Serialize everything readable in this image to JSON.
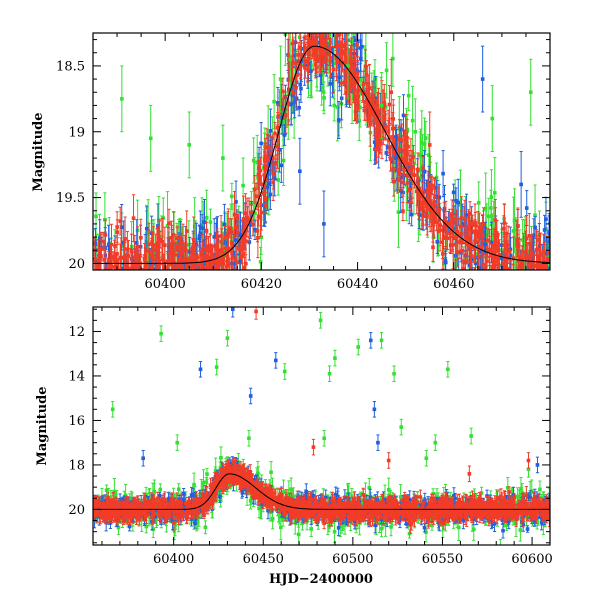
{
  "chart_data": [
    {
      "type": "scatter",
      "panel": "top",
      "ylabel": "Magnitude",
      "xlabel": "",
      "xlim": [
        60385,
        60480
      ],
      "ylim": [
        20.05,
        18.25
      ],
      "y_inverted": true,
      "xticks": [
        60400,
        60420,
        60440,
        60460
      ],
      "yticks": [
        18.5,
        19,
        19.5,
        20
      ],
      "ytick_labels": [
        "18.5",
        "19",
        "19.5",
        "20"
      ],
      "series": [
        {
          "name": "green",
          "color": "#33e033"
        },
        {
          "name": "blue",
          "color": "#1f5fe0"
        },
        {
          "name": "red",
          "color": "#f23c28"
        }
      ],
      "model_curve": {
        "color": "#000000",
        "peak_x": 60431,
        "peak_mag": 18.35,
        "baseline_mag": 20.0,
        "rise_days": 11,
        "decay_days": 22
      },
      "outliers": [
        {
          "x": 60391,
          "y": 18.75,
          "series": "green"
        },
        {
          "x": 60397,
          "y": 19.05,
          "series": "green"
        },
        {
          "x": 60405,
          "y": 19.1,
          "series": "green"
        },
        {
          "x": 60412,
          "y": 19.2,
          "series": "green"
        },
        {
          "x": 60424,
          "y": 18.6,
          "series": "green"
        },
        {
          "x": 60426,
          "y": 18.45,
          "series": "green"
        },
        {
          "x": 60438,
          "y": 18.5,
          "series": "green"
        },
        {
          "x": 60445,
          "y": 18.8,
          "series": "green"
        },
        {
          "x": 60452,
          "y": 19.0,
          "series": "green"
        },
        {
          "x": 60468,
          "y": 18.9,
          "series": "green"
        },
        {
          "x": 60476,
          "y": 18.7,
          "series": "green"
        },
        {
          "x": 60428,
          "y": 19.3,
          "series": "blue"
        },
        {
          "x": 60433,
          "y": 19.7,
          "series": "blue"
        },
        {
          "x": 60448,
          "y": 19.2,
          "series": "blue"
        },
        {
          "x": 60466,
          "y": 18.6,
          "series": "blue"
        },
        {
          "x": 60474,
          "y": 19.4,
          "series": "blue"
        },
        {
          "x": 60447,
          "y": 18.7,
          "series": "red"
        },
        {
          "x": 60455,
          "y": 19.1,
          "series": "red"
        }
      ]
    },
    {
      "type": "scatter",
      "panel": "bottom",
      "ylabel": "Magnitude",
      "xlabel": "HJD−2400000",
      "xlim": [
        60355,
        60610
      ],
      "ylim": [
        21.6,
        10.9
      ],
      "y_inverted": true,
      "xticks": [
        60400,
        60450,
        60500,
        60550,
        60600
      ],
      "yticks": [
        12,
        14,
        16,
        18,
        20
      ],
      "ytick_labels": [
        "12",
        "14",
        "16",
        "18",
        "20"
      ],
      "series": [
        {
          "name": "green",
          "color": "#33e033"
        },
        {
          "name": "blue",
          "color": "#1f5fe0"
        },
        {
          "name": "red",
          "color": "#f23c28"
        }
      ],
      "model_curve": {
        "color": "#000000",
        "peak_x": 60431,
        "peak_mag": 18.4,
        "baseline_mag": 20.0,
        "rise_days": 11,
        "decay_days": 22
      },
      "outliers": [
        {
          "x": 60366,
          "y": 15.5,
          "series": "green"
        },
        {
          "x": 60393,
          "y": 12.1,
          "series": "green"
        },
        {
          "x": 60402,
          "y": 17.0,
          "series": "green"
        },
        {
          "x": 60424,
          "y": 13.6,
          "series": "green"
        },
        {
          "x": 60430,
          "y": 12.3,
          "series": "green"
        },
        {
          "x": 60442,
          "y": 16.8,
          "series": "green"
        },
        {
          "x": 60462,
          "y": 13.8,
          "series": "green"
        },
        {
          "x": 60482,
          "y": 11.5,
          "series": "green"
        },
        {
          "x": 60484,
          "y": 16.8,
          "series": "green"
        },
        {
          "x": 60487,
          "y": 13.9,
          "series": "green"
        },
        {
          "x": 60490,
          "y": 13.2,
          "series": "green"
        },
        {
          "x": 60503,
          "y": 12.7,
          "series": "green"
        },
        {
          "x": 60516,
          "y": 12.4,
          "series": "green"
        },
        {
          "x": 60523,
          "y": 13.9,
          "series": "green"
        },
        {
          "x": 60527,
          "y": 16.3,
          "series": "green"
        },
        {
          "x": 60541,
          "y": 17.7,
          "series": "green"
        },
        {
          "x": 60546,
          "y": 17.0,
          "series": "green"
        },
        {
          "x": 60553,
          "y": 13.7,
          "series": "green"
        },
        {
          "x": 60566,
          "y": 16.7,
          "series": "green"
        },
        {
          "x": 60598,
          "y": 18.2,
          "series": "green"
        },
        {
          "x": 60415,
          "y": 13.7,
          "series": "blue"
        },
        {
          "x": 60433,
          "y": 11.0,
          "series": "blue"
        },
        {
          "x": 60443,
          "y": 14.9,
          "series": "blue"
        },
        {
          "x": 60457,
          "y": 13.3,
          "series": "blue"
        },
        {
          "x": 60474,
          "y": 19.2,
          "series": "blue"
        },
        {
          "x": 60510,
          "y": 12.4,
          "series": "blue"
        },
        {
          "x": 60512,
          "y": 15.5,
          "series": "blue"
        },
        {
          "x": 60514,
          "y": 17.0,
          "series": "blue"
        },
        {
          "x": 60383,
          "y": 17.7,
          "series": "blue"
        },
        {
          "x": 60603,
          "y": 18.0,
          "series": "blue"
        },
        {
          "x": 60446,
          "y": 11.1,
          "series": "red"
        },
        {
          "x": 60478,
          "y": 17.2,
          "series": "red"
        },
        {
          "x": 60520,
          "y": 17.8,
          "series": "red"
        },
        {
          "x": 60565,
          "y": 18.4,
          "series": "red"
        },
        {
          "x": 60598,
          "y": 17.8,
          "series": "red"
        }
      ]
    }
  ]
}
